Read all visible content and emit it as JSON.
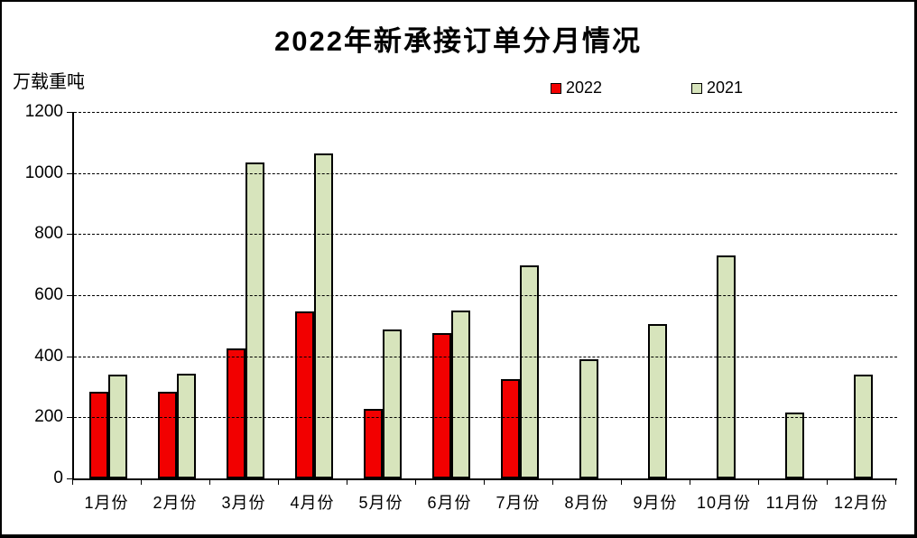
{
  "title": "2022年新承接订单分月情况",
  "unit_label": "万载重吨",
  "legend": {
    "items": [
      {
        "label": "2022",
        "color": "#f20000"
      },
      {
        "label": "2021",
        "color": "#d7e4bc"
      }
    ]
  },
  "chart_data": {
    "type": "bar",
    "title": "2022年新承接订单分月情况",
    "xlabel": "",
    "ylabel": "万载重吨",
    "categories": [
      "1月份",
      "2月份",
      "3月份",
      "4月份",
      "5月份",
      "6月份",
      "7月份",
      "8月份",
      "9月份",
      "10月份",
      "11月份",
      "12月份"
    ],
    "series": [
      {
        "name": "2022",
        "color": "#f20000",
        "values": [
          285,
          285,
          427,
          546,
          228,
          476,
          326,
          null,
          null,
          null,
          null,
          null
        ]
      },
      {
        "name": "2021",
        "color": "#d7e4bc",
        "values": [
          340,
          343,
          1035,
          1065,
          488,
          549,
          697,
          390,
          505,
          730,
          216,
          341
        ]
      }
    ],
    "ylim": [
      0,
      1200
    ],
    "yticks": [
      0,
      200,
      400,
      600,
      800,
      1000,
      1200
    ],
    "grid": "horizontal-dashed",
    "legend_position": "top-center",
    "bar_border_color": "#000000"
  }
}
